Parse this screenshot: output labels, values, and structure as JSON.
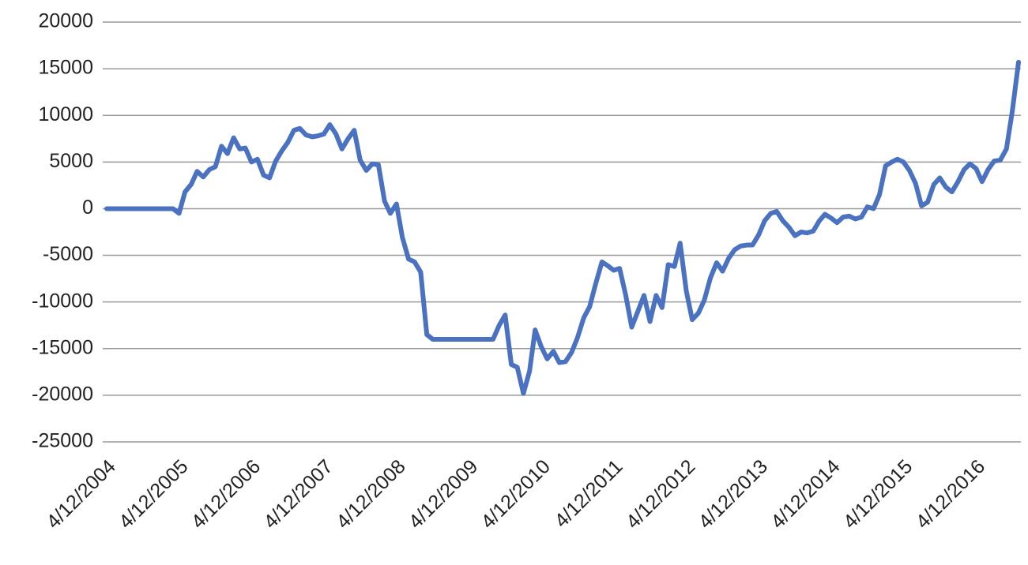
{
  "chart_data": {
    "type": "line",
    "x": [
      "4/12/2004",
      "5/12/2004",
      "6/12/2004",
      "7/12/2004",
      "8/12/2004",
      "9/12/2004",
      "10/12/2004",
      "11/12/2004",
      "12/12/2004",
      "1/12/2005",
      "2/12/2005",
      "3/12/2005",
      "4/12/2005",
      "5/12/2005",
      "6/12/2005",
      "7/12/2005",
      "8/12/2005",
      "9/12/2005",
      "10/12/2005",
      "11/12/2005",
      "12/12/2005",
      "1/12/2006",
      "2/12/2006",
      "3/12/2006",
      "4/12/2006",
      "5/12/2006",
      "6/12/2006",
      "7/12/2006",
      "8/12/2006",
      "9/12/2006",
      "10/12/2006",
      "11/12/2006",
      "12/12/2006",
      "1/12/2007",
      "2/12/2007",
      "3/12/2007",
      "4/12/2007",
      "5/12/2007",
      "6/12/2007",
      "7/12/2007",
      "8/12/2007",
      "9/12/2007",
      "10/12/2007",
      "11/12/2007",
      "12/12/2007",
      "1/12/2008",
      "2/12/2008",
      "3/12/2008",
      "4/12/2008",
      "5/12/2008",
      "6/12/2008",
      "7/12/2008",
      "8/12/2008",
      "9/12/2008",
      "10/12/2008",
      "11/12/2008",
      "12/12/2008",
      "1/12/2009",
      "2/12/2009",
      "3/12/2009",
      "4/12/2009",
      "5/12/2009",
      "6/12/2009",
      "7/12/2009",
      "8/12/2009",
      "9/12/2009",
      "10/12/2009",
      "11/12/2009",
      "12/12/2009",
      "1/12/2010",
      "2/12/2010",
      "3/12/2010",
      "4/12/2010",
      "5/12/2010",
      "6/12/2010",
      "7/12/2010",
      "8/12/2010",
      "9/12/2010",
      "10/12/2010",
      "11/12/2010",
      "12/12/2010",
      "1/12/2011",
      "2/12/2011",
      "3/12/2011",
      "4/12/2011",
      "5/12/2011",
      "6/12/2011",
      "7/12/2011",
      "8/12/2011",
      "9/12/2011",
      "10/12/2011",
      "11/12/2011",
      "12/12/2011",
      "1/12/2012",
      "2/12/2012",
      "3/12/2012",
      "4/12/2012",
      "5/12/2012",
      "6/12/2012",
      "7/12/2012",
      "8/12/2012",
      "9/12/2012",
      "10/12/2012",
      "11/12/2012",
      "12/12/2012",
      "1/12/2013",
      "2/12/2013",
      "3/12/2013",
      "4/12/2013",
      "5/12/2013",
      "6/12/2013",
      "7/12/2013",
      "8/12/2013",
      "9/12/2013",
      "10/12/2013",
      "11/12/2013",
      "12/12/2013",
      "1/12/2014",
      "2/12/2014",
      "3/12/2014",
      "4/12/2014",
      "5/12/2014",
      "6/12/2014",
      "7/12/2014",
      "8/12/2014",
      "9/12/2014",
      "10/12/2014",
      "11/12/2014",
      "12/12/2014",
      "1/12/2015",
      "2/12/2015",
      "3/12/2015",
      "4/12/2015",
      "5/12/2015",
      "6/12/2015",
      "7/12/2015",
      "8/12/2015",
      "9/12/2015",
      "10/12/2015",
      "11/12/2015",
      "12/12/2015",
      "1/12/2016",
      "2/12/2016",
      "3/12/2016",
      "4/12/2016",
      "5/12/2016",
      "6/12/2016",
      "7/12/2016",
      "8/12/2016",
      "9/12/2016",
      "10/12/2016",
      "11/12/2016"
    ],
    "values": [
      0,
      0,
      0,
      0,
      0,
      0,
      0,
      0,
      0,
      0,
      0,
      0,
      -500,
      1800,
      2600,
      4000,
      3400,
      4200,
      4500,
      6700,
      5900,
      7600,
      6400,
      6500,
      5000,
      5300,
      3600,
      3300,
      5100,
      6200,
      7100,
      8400,
      8600,
      7900,
      7700,
      7800,
      8000,
      9000,
      8000,
      6400,
      7500,
      8400,
      5200,
      4100,
      4800,
      4700,
      800,
      -500,
      500,
      -3100,
      -5400,
      -5700,
      -6800,
      -13500,
      -14000,
      -14000,
      -14000,
      -14000,
      -14000,
      -14000,
      -14000,
      -14000,
      -14000,
      -14000,
      -14000,
      -12500,
      -11400,
      -16700,
      -17000,
      -19800,
      -17400,
      -13000,
      -14800,
      -16100,
      -15300,
      -16500,
      -16400,
      -15400,
      -13800,
      -11700,
      -10500,
      -8000,
      -5700,
      -6100,
      -6600,
      -6400,
      -9300,
      -12700,
      -11000,
      -9300,
      -12100,
      -9300,
      -10600,
      -6000,
      -6200,
      -3700,
      -8800,
      -11900,
      -11200,
      -9800,
      -7400,
      -5800,
      -6700,
      -5300,
      -4400,
      -4000,
      -3900,
      -3900,
      -2800,
      -1300,
      -500,
      -300,
      -1300,
      -2000,
      -2900,
      -2500,
      -2600,
      -2400,
      -1300,
      -600,
      -1000,
      -1500,
      -900,
      -800,
      -1100,
      -900,
      200,
      0,
      1500,
      4600,
      5000,
      5300,
      5000,
      4100,
      2700,
      300,
      700,
      2600,
      3300,
      2300,
      1800,
      2900,
      4200,
      4800,
      4300,
      2900,
      4200,
      5100,
      5200,
      6400,
      10500,
      15700
    ],
    "color": "#4a72c0",
    "xlim": [
      "4/12/2004",
      "11/12/2016"
    ],
    "xticks": [
      "4/12/2004",
      "4/12/2005",
      "4/12/2006",
      "4/12/2007",
      "4/12/2008",
      "4/12/2009",
      "4/12/2010",
      "4/12/2011",
      "4/12/2012",
      "4/12/2013",
      "4/12/2014",
      "4/12/2015",
      "4/12/2016"
    ],
    "ylim": [
      -25000,
      20000
    ],
    "yticks": [
      -25000,
      -20000,
      -15000,
      -10000,
      -5000,
      0,
      5000,
      10000,
      15000,
      20000
    ],
    "grid": true
  }
}
